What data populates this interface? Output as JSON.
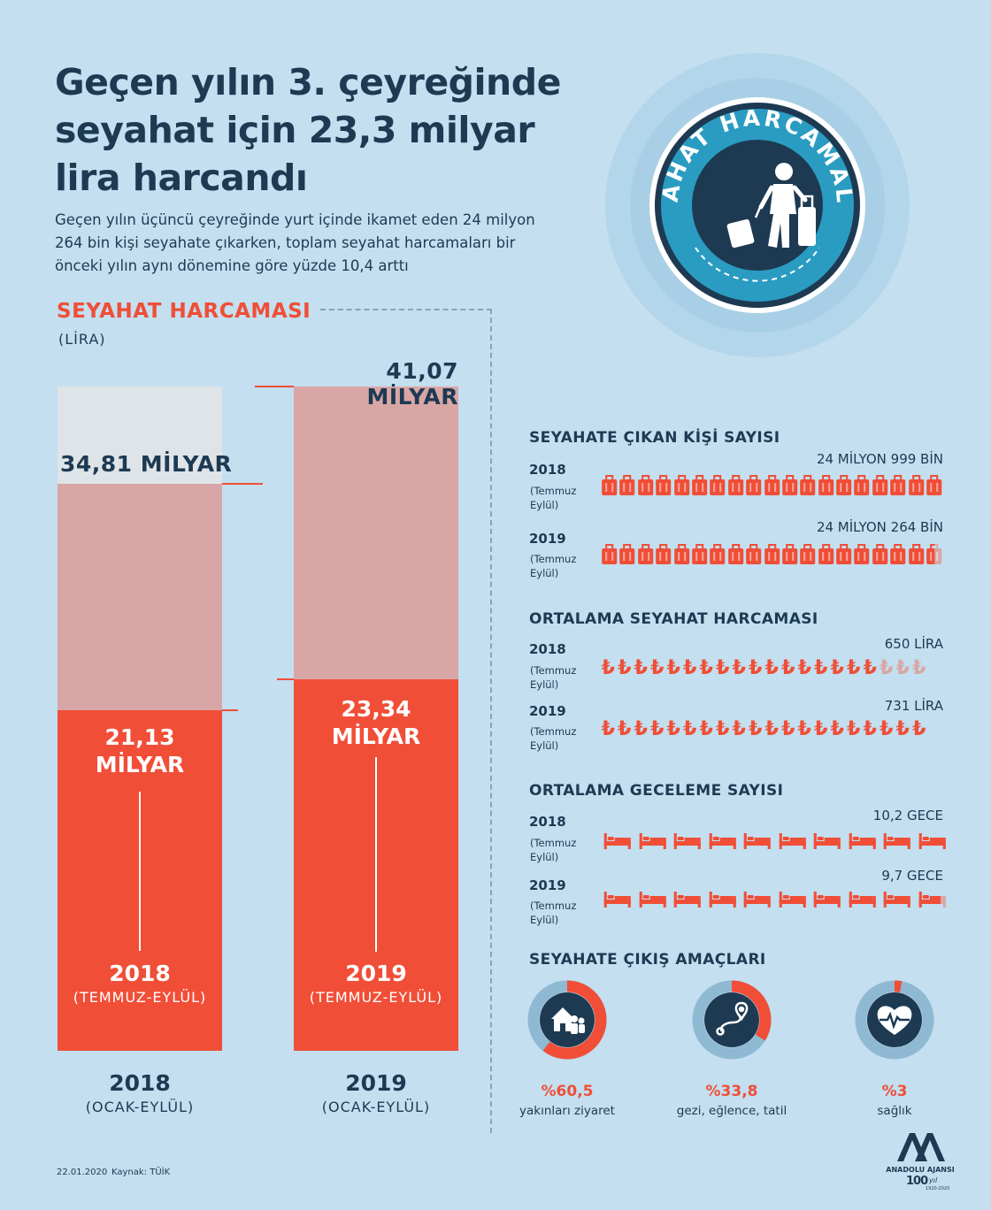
{
  "header": {
    "title_line1": "Geçen yılın 3. çeyreğinde",
    "title_line2": "seyahat için 23,3 milyar",
    "title_line3": "lira harcandı",
    "subtitle_line1": "Geçen yılın üçüncü çeyreğinde yurt içinde ikamet eden 24 milyon",
    "subtitle_line2": "264 bin kişi seyahate çıkarken, toplam seyahat harcamaları bir",
    "subtitle_line3": "önceki yılın aynı dönemine göre yüzde 10,4 arttı"
  },
  "badge": {
    "text": "SEYAHAT HARCAMALARI",
    "icon": "traveler-with-luggage-icon"
  },
  "spending": {
    "title": "SEYAHAT HARCAMASI",
    "unit": "(LİRA)",
    "bars": [
      {
        "year": "2018",
        "full_label": "34,81 MİLYAR",
        "q3_line1": "21,13",
        "q3_line2": "MİLYAR",
        "q3_year": "2018",
        "q3_period": "(TEMMUZ-EYLÜL)",
        "full_year": "2018",
        "full_period": "(OCAK-EYLÜL)",
        "total": 34.81,
        "q3": 21.13
      },
      {
        "year": "2019",
        "full_label": "41,07 MİLYAR",
        "q3_line1": "23,34",
        "q3_line2": "MİLYAR",
        "q3_year": "2019",
        "q3_period": "(TEMMUZ-EYLÜL)",
        "full_year": "2019",
        "full_period": "(OCAK-EYLÜL)",
        "total": 41.07,
        "q3": 23.34
      }
    ]
  },
  "travelers": {
    "title": "SEYAHATE ÇIKAN KİŞİ SAYISI",
    "rows": [
      {
        "year": "2018",
        "period_line1": "(Temmuz",
        "period_line2": "Eylül)",
        "value": "24 MİLYON 999 BİN",
        "filled": 19
      },
      {
        "year": "2019",
        "period_line1": "(Temmuz",
        "period_line2": "Eylül)",
        "value": "24 MİLYON 264 BİN",
        "filled": 18.5
      }
    ],
    "icon_count": 19,
    "icon": "luggage-icon"
  },
  "avg_spend": {
    "title": "ORTALAMA SEYAHAT HARCAMASI",
    "symbol": "₺",
    "rows": [
      {
        "year": "2018",
        "period_line1": "(Temmuz",
        "period_line2": "Eylül)",
        "value": "650 LİRA",
        "filled": 17
      },
      {
        "year": "2019",
        "period_line1": "(Temmuz",
        "period_line2": "Eylül)",
        "value": "731 LİRA",
        "filled": 20
      }
    ],
    "icon_count": 20
  },
  "nights": {
    "title": "ORTALAMA GECELEME SAYISI",
    "rows": [
      {
        "year": "2018",
        "period_line1": "(Temmuz",
        "period_line2": "Eylül)",
        "value": "10,2 GECE",
        "filled": 10
      },
      {
        "year": "2019",
        "period_line1": "(Temmuz",
        "period_line2": "Eylül)",
        "value": "9,7 GECE",
        "filled": 9.7
      }
    ],
    "icon_count": 10,
    "icon": "bed-icon"
  },
  "purposes": {
    "title": "SEYAHATE ÇIKIŞ AMAÇLARI",
    "items": [
      {
        "pct": "%60,5",
        "label": "yakınları ziyaret",
        "value": 60.5,
        "icon": "house-family-icon"
      },
      {
        "pct": "%33,8",
        "label": "gezi, eğlence, tatil",
        "value": 33.8,
        "icon": "route-map-icon"
      },
      {
        "pct": "%3",
        "label": "sağlık",
        "value": 3,
        "icon": "heart-pulse-icon"
      }
    ]
  },
  "footer": {
    "date": "22.01.2020",
    "source": "Kaynak: TÜİK",
    "agency": "ANADOLU AJANSI",
    "anniv_num": "100",
    "anniv_word": "yıl",
    "anniv_years": "1920-2020"
  },
  "colors": {
    "background": "#c3dff0",
    "accent": "#f04e37",
    "navy": "#1d3a52",
    "pink": "#d9a6a6",
    "grey": "#dfe4e8",
    "badge_blue": "#2a9cc1"
  }
}
